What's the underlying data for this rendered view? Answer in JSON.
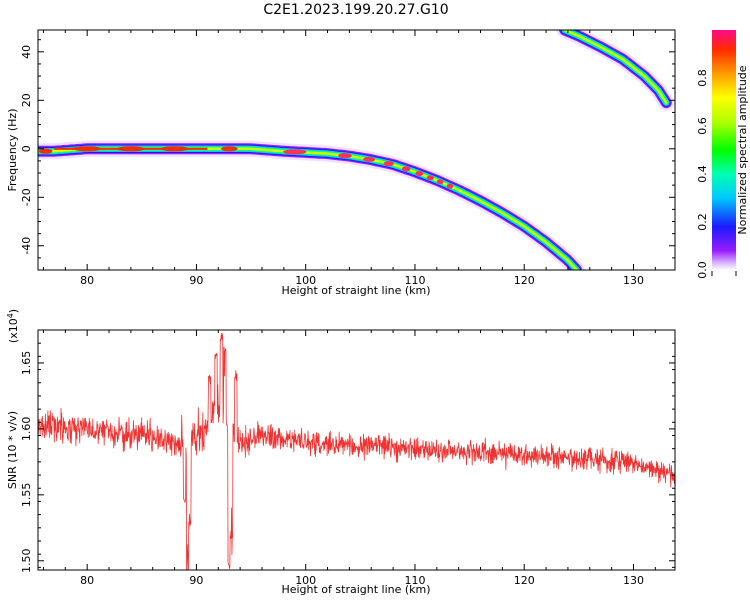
{
  "figure_title": "C2E1.2023.199.20.27.G10",
  "chart_data": [
    {
      "type": "heatmap",
      "xlabel": "Height of straight line (km)",
      "ylabel": "Frequency (Hz)",
      "xlim": [
        75.5,
        133.8
      ],
      "ylim": [
        -50,
        49
      ],
      "xticks": [
        80,
        90,
        100,
        110,
        120,
        130
      ],
      "yticks": [
        -40,
        -20,
        0,
        20,
        40
      ],
      "colorbar": {
        "label": "Normalized spectral amplitude",
        "range": [
          0,
          1
        ],
        "ticks": [
          "0.0",
          "0.2",
          "0.4",
          "0.6",
          "0.8"
        ]
      },
      "tracks": [
        {
          "points": [
            [
              75.5,
              -1
            ],
            [
              77,
              -1
            ],
            [
              80,
              0
            ],
            [
              85,
              0
            ],
            [
              90,
              0
            ],
            [
              95,
              0
            ],
            [
              98,
              -1
            ],
            [
              100,
              -1.5
            ],
            [
              102,
              -2
            ],
            [
              104,
              -3
            ],
            [
              106,
              -4.5
            ],
            [
              108,
              -6.5
            ],
            [
              110,
              -9.5
            ],
            [
              112,
              -13
            ],
            [
              114,
              -17
            ],
            [
              116,
              -21.5
            ],
            [
              118,
              -26.5
            ],
            [
              120,
              -32
            ],
            [
              122,
              -38.5
            ],
            [
              124,
              -46
            ],
            [
              124.8,
              -50
            ]
          ]
        },
        {
          "points": [
            [
              123.7,
              49
            ],
            [
              125,
              46.5
            ],
            [
              127,
              42
            ],
            [
              129,
              37
            ],
            [
              131,
              30
            ],
            [
              132.3,
              24
            ],
            [
              133,
              19
            ]
          ]
        }
      ]
    },
    {
      "type": "line",
      "xlabel": "Height of straight line (km)",
      "ylabel": "SNR (10 * v/v)",
      "y_multiplier": "(x10",
      "y_multiplier_exp": "4",
      "y_multiplier_close": ")",
      "xlim": [
        75.5,
        133.8
      ],
      "ylim": [
        1.493,
        1.675
      ],
      "xticks": [
        80,
        90,
        100,
        110,
        120,
        130
      ],
      "yticks": [
        "1.50",
        "1.55",
        "1.60",
        "1.65"
      ],
      "color": "#ee3333",
      "trend": [
        [
          75.5,
          1.603
        ],
        [
          80,
          1.6
        ],
        [
          85,
          1.595
        ],
        [
          88,
          1.59
        ],
        [
          89,
          1.585
        ],
        [
          90,
          1.595
        ],
        [
          91,
          1.605
        ],
        [
          92,
          1.615
        ],
        [
          93,
          1.595
        ],
        [
          94,
          1.59
        ],
        [
          96,
          1.595
        ],
        [
          100,
          1.59
        ],
        [
          110,
          1.585
        ],
        [
          120,
          1.58
        ],
        [
          130,
          1.575
        ],
        [
          133.8,
          1.565
        ]
      ],
      "events": [
        {
          "x": 88.9,
          "y": 1.545
        },
        {
          "x": 89.2,
          "y": 1.5
        },
        {
          "x": 89.4,
          "y": 1.53
        },
        {
          "x": 91.2,
          "y": 1.64
        },
        {
          "x": 91.8,
          "y": 1.655
        },
        {
          "x": 92.3,
          "y": 1.67
        },
        {
          "x": 92.6,
          "y": 1.66
        },
        {
          "x": 93.0,
          "y": 1.495
        },
        {
          "x": 93.2,
          "y": 1.52
        },
        {
          "x": 93.6,
          "y": 1.64
        }
      ]
    }
  ]
}
